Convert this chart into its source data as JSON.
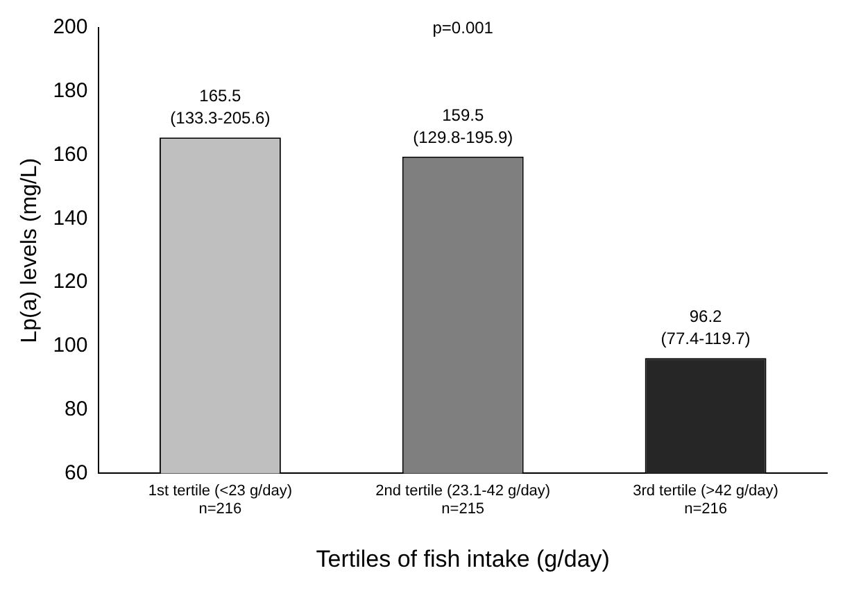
{
  "chart_data": {
    "type": "bar",
    "xlabel": "Tertiles of fish intake (g/day)",
    "ylabel": "Lp(a) levels (mg/L)",
    "categories": [
      "1st tertile (<23 g/day)\nn=216",
      "2nd tertile (23.1-42 g/day)\nn=215",
      "3rd tertile (>42 g/day)\nn=216"
    ],
    "values": [
      165.5,
      159.5,
      96.2
    ],
    "colors": [
      "#bfbfbf",
      "#7f7f7f",
      "#262626"
    ],
    "value_labels": [
      "165.5\n(133.3-205.6)",
      "159.5\n(129.8-195.9)",
      "96.2\n(77.4-119.7)"
    ],
    "annotations": [
      "p=0.001"
    ],
    "ylim": [
      60,
      200
    ],
    "yticks": [
      60,
      80,
      100,
      120,
      140,
      160,
      180,
      200
    ],
    "grid": false,
    "legend": false
  }
}
